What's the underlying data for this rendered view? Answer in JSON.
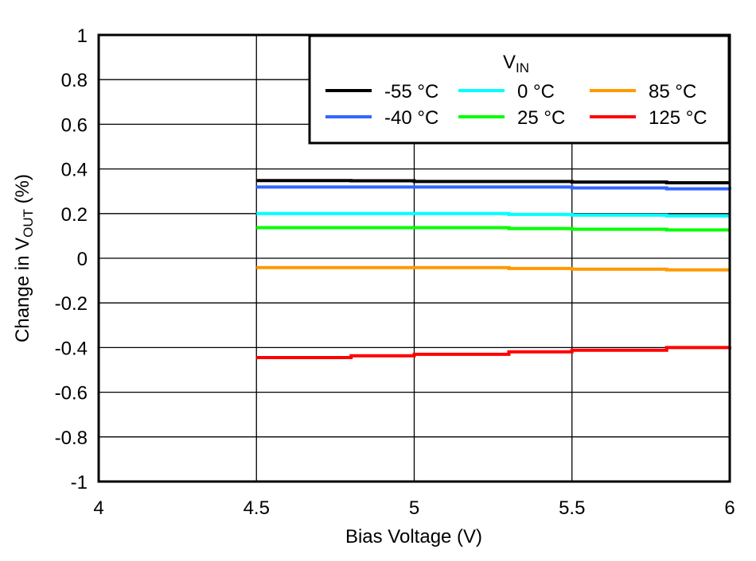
{
  "chart_data": {
    "type": "line",
    "xlabel": "Bias Voltage (V)",
    "ylabel_main": "Change in V",
    "ylabel_sub": "OUT",
    "ylabel_suffix": " (%)",
    "xlim": [
      4,
      6
    ],
    "ylim": [
      -1,
      1
    ],
    "xticks": [
      "4",
      "4.5",
      "5",
      "5.5",
      "6"
    ],
    "yticks": [
      "1",
      "0.8",
      "0.6",
      "0.4",
      "0.2",
      "0",
      "-0.2",
      "-0.4",
      "-0.6",
      "-0.8",
      "-1"
    ],
    "grid": true,
    "legend": {
      "title_main": "V",
      "title_sub": "IN",
      "placement": "top-right"
    },
    "x": [
      4.5,
      4.8,
      5.0,
      5.3,
      5.5,
      5.8,
      6.0
    ],
    "series": [
      {
        "name": "-55 °C",
        "color": "#000000",
        "values": [
          0.348,
          0.347,
          0.344,
          0.344,
          0.341,
          0.338,
          0.338
        ]
      },
      {
        "name": "-40 °C",
        "color": "#3366ff",
        "values": [
          0.319,
          0.319,
          0.319,
          0.319,
          0.315,
          0.311,
          0.308
        ]
      },
      {
        "name": "0 °C",
        "color": "#00ffff",
        "values": [
          0.2,
          0.2,
          0.2,
          0.196,
          0.193,
          0.19,
          0.19
        ]
      },
      {
        "name": "25 °C",
        "color": "#00ff00",
        "values": [
          0.137,
          0.137,
          0.137,
          0.133,
          0.13,
          0.127,
          0.127
        ]
      },
      {
        "name": "85 °C",
        "color": "#ff9900",
        "values": [
          -0.042,
          -0.042,
          -0.042,
          -0.046,
          -0.049,
          -0.052,
          -0.052
        ]
      },
      {
        "name": "125 °C",
        "color": "#ff0000",
        "values": [
          -0.445,
          -0.437,
          -0.43,
          -0.419,
          -0.412,
          -0.4,
          -0.395
        ]
      }
    ]
  }
}
